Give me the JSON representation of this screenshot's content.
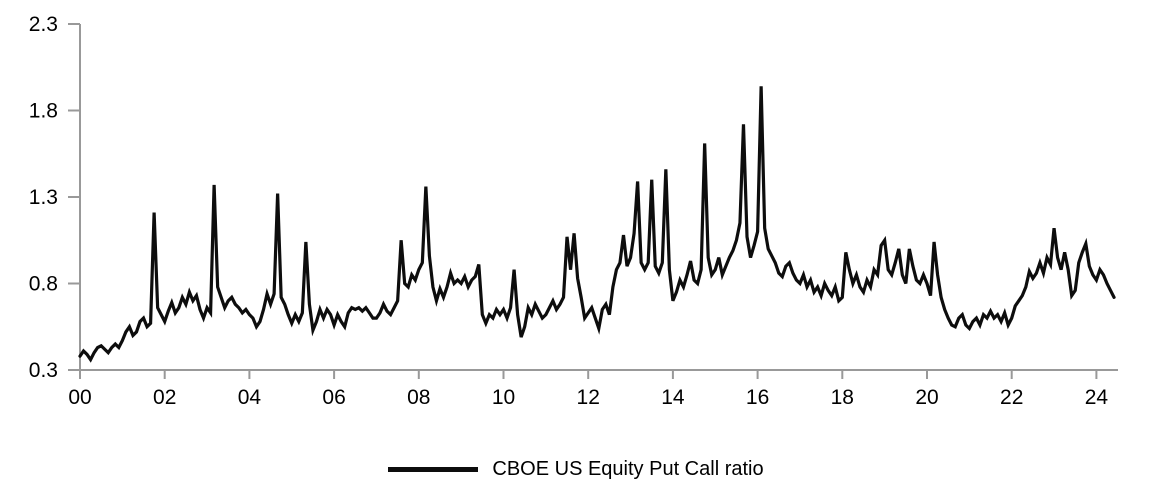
{
  "chart_data": {
    "type": "line",
    "title": "",
    "grid": "off",
    "background": "#ffffff",
    "axis_color": "#999999",
    "line_color": "#0d0d0d",
    "legend": {
      "position": "bottom-center",
      "entries": [
        {
          "label": "CBOE US Equity Put Call ratio",
          "color": "#0d0d0d",
          "swatch": "line"
        }
      ]
    },
    "y_axis": {
      "min": 0.3,
      "max": 2.3,
      "step": 0.5,
      "tick_labels": [
        "0.3",
        "0.8",
        "1.3",
        "1.8",
        "2.3"
      ]
    },
    "x_axis": {
      "tick_labels": [
        "00",
        "02",
        "04",
        "06",
        "08",
        "10",
        "12",
        "14",
        "16",
        "18",
        "20",
        "22",
        "24"
      ],
      "tick_years": [
        2000,
        2002,
        2004,
        2006,
        2008,
        2010,
        2012,
        2014,
        2016,
        2018,
        2020,
        2022,
        2024
      ],
      "range": "Jan 2000 to Jun 2024"
    },
    "series": [
      {
        "name": "CBOE US Equity Put Call ratio",
        "color": "#0d0d0d",
        "frequency": "monthly",
        "x_start": "2000-01",
        "values": [
          0.38,
          0.41,
          0.39,
          0.36,
          0.4,
          0.43,
          0.44,
          0.42,
          0.4,
          0.43,
          0.45,
          0.43,
          0.47,
          0.52,
          0.55,
          0.5,
          0.52,
          0.58,
          0.6,
          0.55,
          0.57,
          1.21,
          0.66,
          0.62,
          0.58,
          0.64,
          0.69,
          0.63,
          0.66,
          0.72,
          0.68,
          0.75,
          0.7,
          0.73,
          0.65,
          0.6,
          0.66,
          0.63,
          1.37,
          0.78,
          0.72,
          0.66,
          0.7,
          0.72,
          0.68,
          0.66,
          0.63,
          0.65,
          0.62,
          0.6,
          0.55,
          0.58,
          0.65,
          0.74,
          0.68,
          0.74,
          1.32,
          0.72,
          0.68,
          0.62,
          0.57,
          0.62,
          0.58,
          0.63,
          1.04,
          0.68,
          0.53,
          0.58,
          0.65,
          0.6,
          0.65,
          0.62,
          0.56,
          0.62,
          0.58,
          0.55,
          0.63,
          0.66,
          0.65,
          0.66,
          0.64,
          0.66,
          0.63,
          0.6,
          0.6,
          0.63,
          0.68,
          0.64,
          0.62,
          0.66,
          0.7,
          1.05,
          0.8,
          0.78,
          0.85,
          0.82,
          0.88,
          0.92,
          1.36,
          0.96,
          0.78,
          0.7,
          0.77,
          0.72,
          0.78,
          0.86,
          0.8,
          0.82,
          0.8,
          0.84,
          0.78,
          0.82,
          0.84,
          0.91,
          0.62,
          0.57,
          0.62,
          0.6,
          0.65,
          0.62,
          0.65,
          0.6,
          0.66,
          0.88,
          0.62,
          0.49,
          0.55,
          0.66,
          0.62,
          0.68,
          0.64,
          0.6,
          0.62,
          0.66,
          0.7,
          0.65,
          0.68,
          0.72,
          1.07,
          0.88,
          1.09,
          0.83,
          0.72,
          0.6,
          0.63,
          0.66,
          0.6,
          0.54,
          0.65,
          0.68,
          0.62,
          0.78,
          0.88,
          0.92,
          1.08,
          0.9,
          0.95,
          1.09,
          1.39,
          0.92,
          0.88,
          0.92,
          1.4,
          0.9,
          0.86,
          0.92,
          1.46,
          0.88,
          0.7,
          0.75,
          0.82,
          0.78,
          0.85,
          0.93,
          0.82,
          0.8,
          0.88,
          1.61,
          0.95,
          0.85,
          0.88,
          0.95,
          0.85,
          0.9,
          0.95,
          0.99,
          1.05,
          1.15,
          1.72,
          1.07,
          0.95,
          1.02,
          1.1,
          1.94,
          1.12,
          1.0,
          0.96,
          0.92,
          0.86,
          0.84,
          0.9,
          0.92,
          0.86,
          0.82,
          0.8,
          0.85,
          0.78,
          0.82,
          0.75,
          0.78,
          0.73,
          0.8,
          0.76,
          0.73,
          0.78,
          0.7,
          0.72,
          0.98,
          0.88,
          0.8,
          0.85,
          0.78,
          0.75,
          0.82,
          0.78,
          0.88,
          0.85,
          1.02,
          1.05,
          0.88,
          0.85,
          0.92,
          1.0,
          0.85,
          0.8,
          1.0,
          0.9,
          0.82,
          0.8,
          0.85,
          0.8,
          0.73,
          1.04,
          0.85,
          0.72,
          0.65,
          0.6,
          0.56,
          0.55,
          0.6,
          0.62,
          0.56,
          0.54,
          0.58,
          0.6,
          0.56,
          0.62,
          0.6,
          0.64,
          0.6,
          0.62,
          0.58,
          0.63,
          0.56,
          0.6,
          0.67,
          0.7,
          0.73,
          0.78,
          0.87,
          0.83,
          0.86,
          0.92,
          0.86,
          0.95,
          0.91,
          1.12,
          0.95,
          0.88,
          0.98,
          0.88,
          0.73,
          0.76,
          0.92,
          0.98,
          1.03,
          0.9,
          0.85,
          0.82,
          0.88,
          0.85,
          0.8,
          0.76,
          0.72
        ]
      }
    ]
  }
}
